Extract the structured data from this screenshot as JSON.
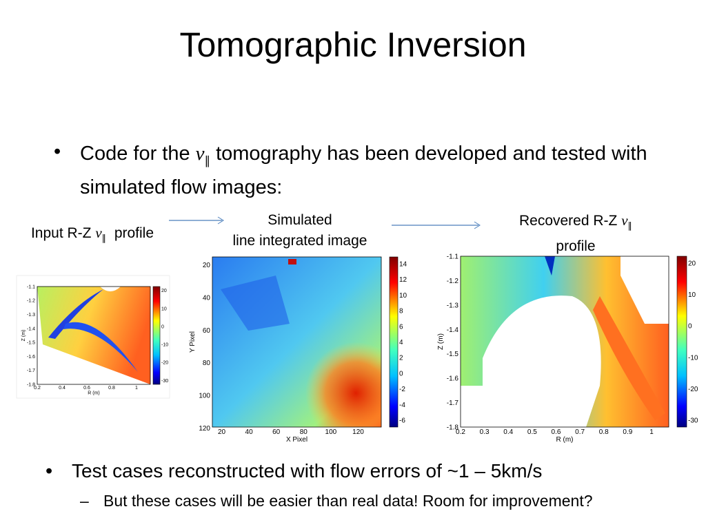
{
  "title": "Tomographic Inversion",
  "bullet1": {
    "before": "Code for the ",
    "sym": "v",
    "sub": "∥",
    "after": " tomography has been developed and tested with simulated flow images:"
  },
  "labels": {
    "input": {
      "before": "Input R-Z ",
      "sym": "v",
      "sub": "∥",
      "after": "  profile"
    },
    "simulated": [
      "Simulated",
      "line integrated image"
    ],
    "recovered": {
      "before": "Recovered R-Z ",
      "sym": "v",
      "sub": "∥",
      "after": "profile"
    }
  },
  "plots": [
    {
      "xlabel": "R (m)",
      "ylabel": "Z (m)",
      "xticks": [
        "0.2",
        "0.4",
        "0.6",
        "0.8",
        "1"
      ],
      "yticks": [
        "-1.1",
        "-1.2",
        "-1.3",
        "-1.4",
        "-1.5",
        "-1.6",
        "-1.7",
        "-1.8"
      ],
      "cticks": [
        "20",
        "10",
        "0",
        "-10",
        "-20",
        "-30"
      ]
    },
    {
      "xlabel": "X Pixel",
      "ylabel": "Y Pixel",
      "xticks": [
        "20",
        "40",
        "60",
        "80",
        "100",
        "120"
      ],
      "yticks": [
        "20",
        "40",
        "60",
        "80",
        "100",
        "120"
      ],
      "cticks": [
        "14",
        "12",
        "10",
        "8",
        "6",
        "4",
        "2",
        "0",
        "-2",
        "-4",
        "-6"
      ]
    },
    {
      "xlabel": "R (m)",
      "ylabel": "Z (m)",
      "xticks": [
        "0.2",
        "0.3",
        "0.4",
        "0.5",
        "0.6",
        "0.7",
        "0.8",
        "0.9",
        "1"
      ],
      "yticks": [
        "-1.1",
        "-1.2",
        "-1.3",
        "-1.4",
        "-1.5",
        "-1.6",
        "-1.7",
        "-1.8"
      ],
      "cticks": [
        "20",
        "10",
        "0",
        "-10",
        "-20",
        "-30"
      ]
    }
  ],
  "bullet2": "Test cases reconstructed with flow errors of ~1 – 5km/s",
  "subbullet": "But these cases will be easier than real data! Room for improvement?"
}
